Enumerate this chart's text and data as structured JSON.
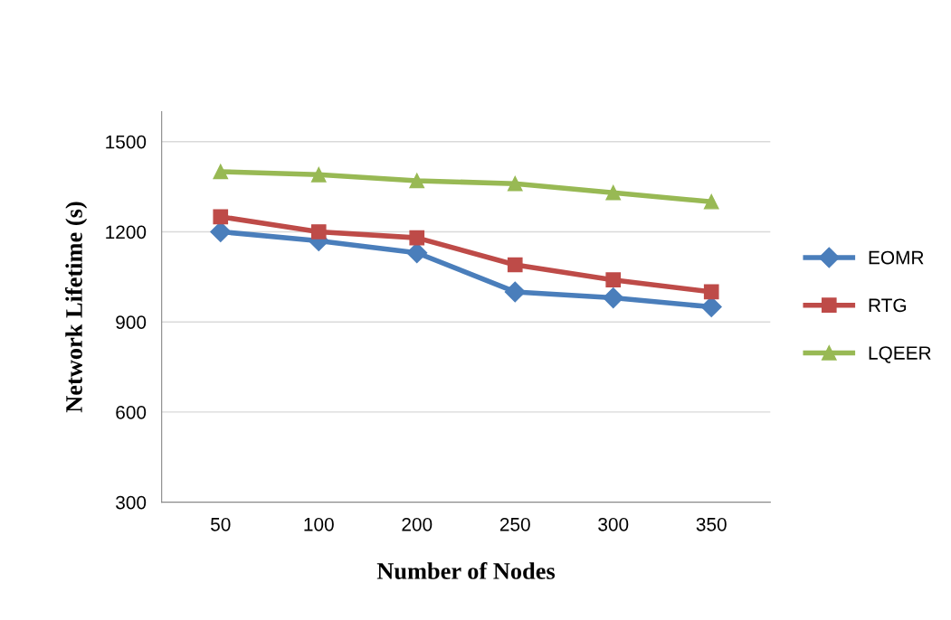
{
  "chart_data": {
    "type": "line",
    "xlabel": "Number of Nodes",
    "ylabel": "Network Lifetime (s)",
    "categories": [
      "50",
      "100",
      "200",
      "250",
      "300",
      "350"
    ],
    "series": [
      {
        "name": "EOMR",
        "color": "#4a7ebb",
        "marker": "diamond",
        "values": [
          1200,
          1170,
          1130,
          1000,
          980,
          950
        ]
      },
      {
        "name": "RTG",
        "color": "#be4b48",
        "marker": "square",
        "values": [
          1250,
          1200,
          1180,
          1090,
          1040,
          1000
        ]
      },
      {
        "name": "LQEER",
        "color": "#98b954",
        "marker": "triangle",
        "values": [
          1400,
          1390,
          1370,
          1360,
          1330,
          1300
        ]
      }
    ],
    "ylim": [
      300,
      1600
    ],
    "yticks": [
      300,
      600,
      900,
      1200,
      1500
    ],
    "grid": "y",
    "legend": "right",
    "line_style": "solid"
  }
}
